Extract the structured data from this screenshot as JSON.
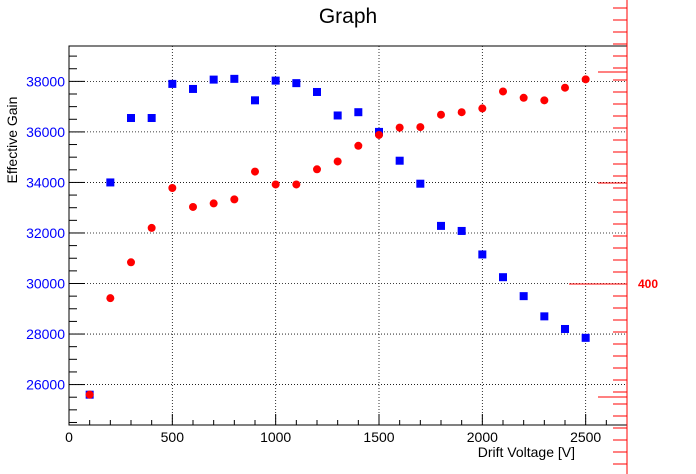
{
  "chart_data": {
    "type": "scatter",
    "title": "Graph",
    "xlabel": "Drift Voltage [V]",
    "ylabel": "Effective Gain",
    "xlim": [
      0,
      2700
    ],
    "ylim": [
      24400,
      39400
    ],
    "x_ticks": [
      0,
      500,
      1000,
      1500,
      2000,
      2500
    ],
    "y_ticks": [
      26000,
      28000,
      30000,
      32000,
      34000,
      36000,
      38000
    ],
    "grid": true,
    "right_axis": {
      "color": "#ff0000",
      "label_value": "400"
    },
    "series": [
      {
        "marker": "square",
        "color": "#0000ff",
        "x": [
          100,
          200,
          300,
          400,
          500,
          600,
          700,
          800,
          900,
          1000,
          1100,
          1200,
          1300,
          1400,
          1500,
          1600,
          1700,
          1800,
          1900,
          2000,
          2100,
          2200,
          2300,
          2400,
          2500
        ],
        "y": [
          25600,
          34000,
          36550,
          36550,
          37900,
          37700,
          38070,
          38100,
          37250,
          38030,
          37930,
          37580,
          36650,
          36780,
          36000,
          34860,
          33950,
          32280,
          32080,
          31150,
          30250,
          29500,
          28700,
          28200,
          27850
        ]
      },
      {
        "marker": "circle",
        "color": "#ff0000",
        "x": [
          100,
          200,
          300,
          400,
          500,
          600,
          700,
          800,
          900,
          1000,
          1100,
          1200,
          1300,
          1400,
          1500,
          1600,
          1700,
          1800,
          1900,
          2000,
          2100,
          2200,
          2300,
          2400,
          2500
        ],
        "y": [
          25600,
          29420,
          30840,
          32200,
          33780,
          33030,
          33170,
          33330,
          34430,
          33920,
          33920,
          34520,
          34830,
          35450,
          35880,
          36170,
          36190,
          36680,
          36780,
          36930,
          37600,
          37350,
          37250,
          37750,
          38080
        ]
      }
    ]
  }
}
